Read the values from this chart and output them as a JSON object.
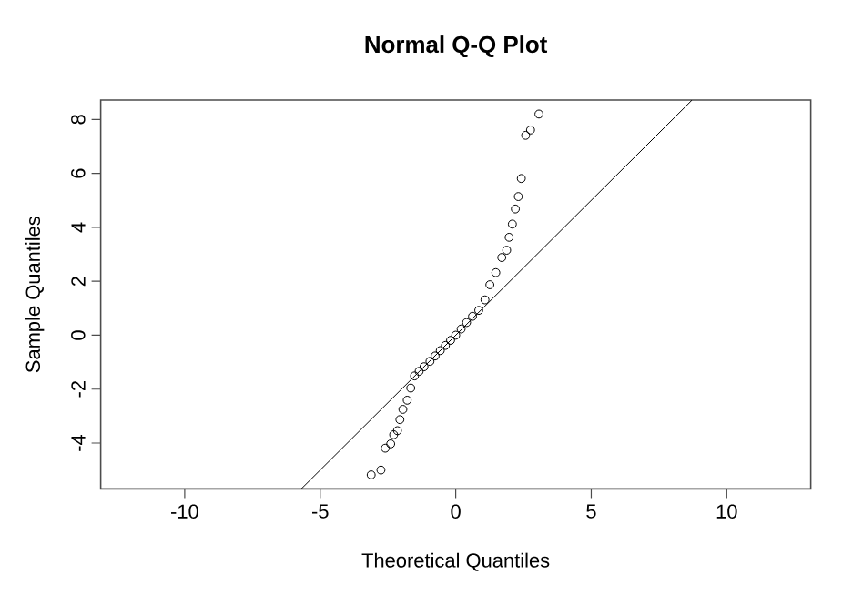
{
  "chart_data": {
    "type": "scatter",
    "title": "Normal Q-Q Plot",
    "xlabel": "Theoretical Quantiles",
    "ylabel": "Sample Quantiles",
    "xlim": [
      -13.1,
      13.1
    ],
    "ylim": [
      -5.7,
      8.72
    ],
    "xticks": [
      -10,
      -5,
      0,
      5,
      10
    ],
    "yticks": [
      -4,
      -2,
      0,
      2,
      4,
      6,
      8
    ],
    "grid": false,
    "series": [
      {
        "marker": "circle",
        "color": "#000000",
        "x": [
          -3.12,
          -2.76,
          -2.6,
          -2.4,
          -2.29,
          -2.15,
          -2.06,
          -1.95,
          -1.79,
          -1.66,
          -1.52,
          -1.35,
          -1.17,
          -0.95,
          -0.76,
          -0.57,
          -0.38,
          -0.19,
          0,
          0.2,
          0.4,
          0.62,
          0.85,
          1.08,
          1.26,
          1.48,
          1.7,
          1.88,
          1.97,
          2.09,
          2.2,
          2.31,
          2.42,
          2.58,
          2.76,
          3.07
        ],
        "values": [
          -5.18,
          -5.0,
          -4.19,
          -4.03,
          -3.69,
          -3.54,
          -3.13,
          -2.75,
          -2.41,
          -1.96,
          -1.51,
          -1.34,
          -1.17,
          -0.97,
          -0.77,
          -0.57,
          -0.38,
          -0.19,
          0,
          0.23,
          0.47,
          0.7,
          0.92,
          1.31,
          1.87,
          2.32,
          2.88,
          3.15,
          3.63,
          4.12,
          4.68,
          5.14,
          5.81,
          7.41,
          7.61,
          8.2
        ]
      },
      {
        "type": "line",
        "marker": "none",
        "color": "#000000",
        "x": [
          -5.7,
          8.72
        ],
        "values": [
          -5.7,
          8.72
        ]
      }
    ]
  }
}
